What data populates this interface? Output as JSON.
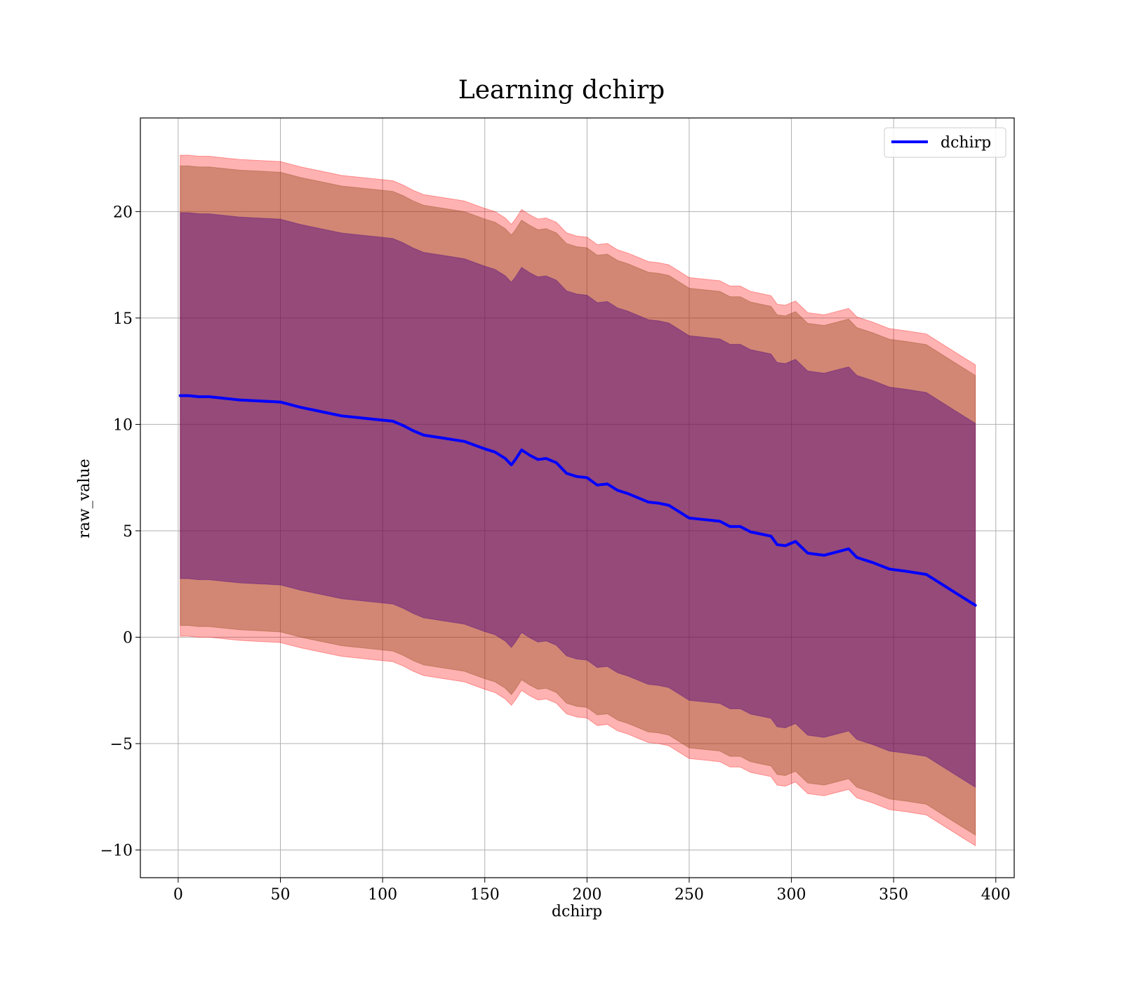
{
  "chart_data": {
    "type": "line",
    "title": "Learning dchirp",
    "xlabel": "dchirp",
    "ylabel": "raw_value",
    "xlim": [
      -18.5,
      409
    ],
    "ylim": [
      -11.3,
      24.4
    ],
    "xticks": [
      0,
      50,
      100,
      150,
      200,
      250,
      300,
      350,
      400
    ],
    "xtick_labels": [
      "0",
      "50",
      "100",
      "150",
      "200",
      "250",
      "300",
      "350",
      "400"
    ],
    "yticks": [
      -10,
      -5,
      0,
      5,
      10,
      15,
      20
    ],
    "ytick_labels": [
      "−10",
      "−5",
      "0",
      "5",
      "10",
      "15",
      "20"
    ],
    "grid": true,
    "legend_position": "top-right",
    "colors": {
      "line": "#0000ff",
      "band_outer": "#ff0000",
      "band_inner": "#8b4513",
      "band_core": "#4b0082"
    },
    "series": [
      {
        "name": "dchirp",
        "x": [
          1,
          5,
          10,
          15,
          20,
          25,
          30,
          40,
          50,
          60,
          70,
          80,
          90,
          100,
          105,
          110,
          115,
          120,
          130,
          140,
          150,
          155,
          160,
          163,
          165,
          168,
          172,
          176,
          180,
          185,
          190,
          195,
          200,
          205,
          210,
          215,
          220,
          225,
          230,
          235,
          240,
          245,
          250,
          255,
          260,
          265,
          270,
          275,
          280,
          285,
          290,
          293,
          297,
          302,
          308,
          316,
          320,
          328,
          332,
          340,
          348,
          356,
          366,
          380,
          390
        ],
        "y": [
          11.35,
          11.35,
          11.3,
          11.3,
          11.25,
          11.2,
          11.15,
          11.1,
          11.05,
          10.8,
          10.6,
          10.4,
          10.3,
          10.2,
          10.15,
          9.95,
          9.7,
          9.5,
          9.35,
          9.2,
          8.85,
          8.7,
          8.4,
          8.1,
          8.35,
          8.8,
          8.55,
          8.35,
          8.4,
          8.2,
          7.7,
          7.55,
          7.5,
          7.15,
          7.2,
          6.9,
          6.75,
          6.55,
          6.35,
          6.3,
          6.2,
          5.9,
          5.6,
          5.55,
          5.5,
          5.45,
          5.2,
          5.2,
          4.95,
          4.85,
          4.75,
          4.35,
          4.3,
          4.5,
          3.95,
          3.85,
          3.95,
          4.15,
          3.75,
          3.5,
          3.2,
          3.1,
          2.95,
          2.1,
          1.5
        ]
      }
    ],
    "bands": [
      {
        "half_width_start": 11.3,
        "half_width_end": 11.3
      },
      {
        "half_width_start": 10.8,
        "half_width_end": 10.8
      },
      {
        "half_width_start": 8.6,
        "half_width_end": 8.55
      }
    ]
  }
}
